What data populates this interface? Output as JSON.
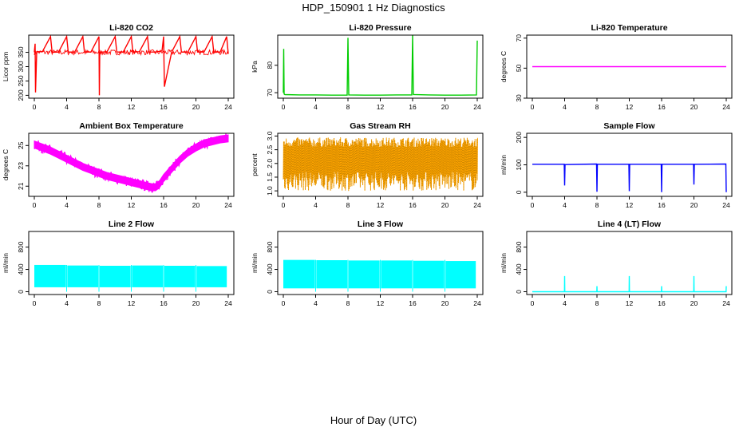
{
  "figure": {
    "title": "HDP_150901  1 Hz Diagnostics",
    "xlabel": "Hour of Day (UTC)"
  },
  "chart_data": [
    {
      "type": "line",
      "title": "Li-820 CO2",
      "ylabel": "Licor ppm",
      "color": "#ff0000",
      "xlim": [
        0,
        24
      ],
      "ylim": [
        190,
        410
      ],
      "xticks": [
        0,
        4,
        8,
        12,
        16,
        20,
        24
      ],
      "yticks": [
        200,
        250,
        300,
        350
      ],
      "x": [
        0,
        0.1,
        0.15,
        0.3,
        1,
        2,
        2.2,
        3,
        4,
        4.2,
        5,
        6,
        6.2,
        7,
        8,
        8.05,
        8.1,
        9,
        10,
        10.2,
        11,
        12,
        12.2,
        13,
        14,
        14.2,
        15,
        15.8,
        16,
        16.1,
        17,
        18,
        18.2,
        19,
        20,
        20.2,
        21,
        22,
        22.2,
        23,
        23.8,
        24
      ],
      "y": [
        350,
        380,
        210,
        352,
        352,
        405,
        350,
        351,
        405,
        351,
        351,
        405,
        351,
        351,
        405,
        200,
        350,
        352,
        405,
        351,
        351,
        405,
        351,
        352,
        405,
        351,
        351,
        355,
        405,
        230,
        351,
        405,
        351,
        351,
        405,
        351,
        351,
        405,
        351,
        351,
        405,
        345
      ]
    },
    {
      "type": "line",
      "title": "Li-820 Pressure",
      "ylabel": "kPa",
      "color": "#00cc00",
      "xlim": [
        0,
        24
      ],
      "ylim": [
        68,
        91
      ],
      "xticks": [
        0,
        4,
        8,
        12,
        16,
        20,
        24
      ],
      "yticks": [
        70,
        80
      ],
      "x": [
        0,
        0.05,
        0.1,
        0.2,
        2,
        4,
        6,
        7.9,
        8,
        8.1,
        10,
        12,
        14,
        15.9,
        16,
        16.1,
        18,
        20,
        22,
        23.9,
        24
      ],
      "y": [
        70,
        86,
        69.5,
        69.3,
        69.2,
        69.2,
        69.1,
        69.1,
        90,
        69.2,
        69.1,
        69.1,
        69.2,
        69.2,
        91,
        69.3,
        69.2,
        69.1,
        69.1,
        69.2,
        89
      ]
    },
    {
      "type": "line",
      "title": "Li-820 Temperature",
      "ylabel": "degrees C",
      "color": "#ff00ff",
      "xlim": [
        0,
        24
      ],
      "ylim": [
        30,
        72
      ],
      "xticks": [
        0,
        4,
        8,
        12,
        16,
        20,
        24
      ],
      "yticks": [
        30,
        50,
        70
      ],
      "x": [
        0,
        24
      ],
      "y": [
        51,
        51
      ]
    },
    {
      "type": "line",
      "title": "Ambient Box Temperature",
      "ylabel": "degrees C",
      "color": "#ff00ff",
      "xlim": [
        0,
        24
      ],
      "ylim": [
        20,
        26.2
      ],
      "xticks": [
        0,
        4,
        8,
        12,
        16,
        20,
        24
      ],
      "yticks": [
        21,
        23,
        25
      ],
      "x": [
        0,
        1,
        2,
        3,
        4,
        5,
        6,
        7,
        8,
        9,
        10,
        11,
        12,
        13,
        14,
        14.5,
        15,
        15.5,
        16,
        17,
        18,
        19,
        20,
        21,
        22,
        23,
        24
      ],
      "y": [
        25.1,
        24.8,
        24.5,
        24.1,
        23.7,
        23.3,
        22.9,
        22.6,
        22.3,
        22.0,
        21.8,
        21.6,
        21.4,
        21.2,
        21.0,
        20.9,
        20.9,
        21.2,
        21.8,
        22.7,
        23.6,
        24.3,
        24.8,
        25.2,
        25.4,
        25.6,
        25.7
      ],
      "band": 0.35
    },
    {
      "type": "line",
      "title": "Gas Stream RH",
      "ylabel": "percent",
      "color": "#ffa500",
      "xlim": [
        0,
        24
      ],
      "ylim": [
        0.8,
        3.1
      ],
      "xticks": [
        0,
        4,
        8,
        12,
        16,
        20,
        24
      ],
      "yticks": [
        1.0,
        1.5,
        2.0,
        2.5,
        3.0
      ],
      "oscillation": {
        "low": [
          1.0,
          1.7
        ],
        "high": [
          2.6,
          2.95
        ]
      }
    },
    {
      "type": "line",
      "title": "Sample Flow",
      "ylabel": "ml/min",
      "color": "#0000ff",
      "xlim": [
        0,
        24
      ],
      "ylim": [
        -15,
        215
      ],
      "xticks": [
        0,
        4,
        8,
        12,
        16,
        20,
        24
      ],
      "yticks": [
        0,
        100,
        200
      ],
      "x": [
        0,
        3.95,
        4,
        4.05,
        7.95,
        8,
        8.05,
        11.95,
        12,
        12.05,
        15.95,
        16,
        16.05,
        19.95,
        20,
        20.05,
        23.95,
        24
      ],
      "y": [
        102,
        102,
        25,
        101,
        103,
        2,
        102,
        102,
        4,
        102,
        102,
        0,
        102,
        102,
        28,
        102,
        103,
        0
      ]
    },
    {
      "type": "area",
      "title": "Line 2 Flow",
      "ylabel": "ml/min",
      "color": "#00ffff",
      "xlim": [
        0,
        24
      ],
      "ylim": [
        -50,
        1080
      ],
      "xticks": [
        0,
        4,
        8,
        12,
        16,
        20,
        24
      ],
      "yticks": [
        0,
        400,
        800
      ],
      "x": [
        0,
        4,
        8,
        12,
        16,
        20,
        23.9
      ],
      "y_top": [
        480,
        470,
        465,
        470,
        465,
        460,
        450
      ],
      "y_bottom": 80,
      "gaps": [
        4,
        8,
        12,
        16,
        20
      ]
    },
    {
      "type": "area",
      "title": "Line 3 Flow",
      "ylabel": "ml/min",
      "color": "#00ffff",
      "xlim": [
        0,
        24
      ],
      "ylim": [
        -50,
        1080
      ],
      "xticks": [
        0,
        4,
        8,
        12,
        16,
        20,
        24
      ],
      "yticks": [
        0,
        400,
        800
      ],
      "x": [
        0,
        4,
        8,
        12,
        16,
        20,
        23.9
      ],
      "y_top": [
        570,
        565,
        560,
        560,
        555,
        550,
        545
      ],
      "y_bottom": 60,
      "gaps": [
        4,
        8,
        12,
        16,
        20
      ]
    },
    {
      "type": "line",
      "title": "Line 4 (LT) Flow",
      "ylabel": "ml/min",
      "color": "#00ffff",
      "xlim": [
        0,
        24
      ],
      "ylim": [
        -50,
        1080
      ],
      "xticks": [
        0,
        4,
        8,
        12,
        16,
        20,
        24
      ],
      "yticks": [
        0,
        400,
        800
      ],
      "x": [
        0,
        3.98,
        4,
        4.02,
        7.98,
        8,
        8.02,
        11.98,
        12,
        12.02,
        15.98,
        16,
        16.02,
        19.98,
        20,
        20.02,
        23.98,
        24
      ],
      "y": [
        0,
        0,
        280,
        0,
        0,
        100,
        0,
        0,
        280,
        0,
        0,
        100,
        0,
        0,
        280,
        0,
        0,
        100
      ]
    }
  ]
}
